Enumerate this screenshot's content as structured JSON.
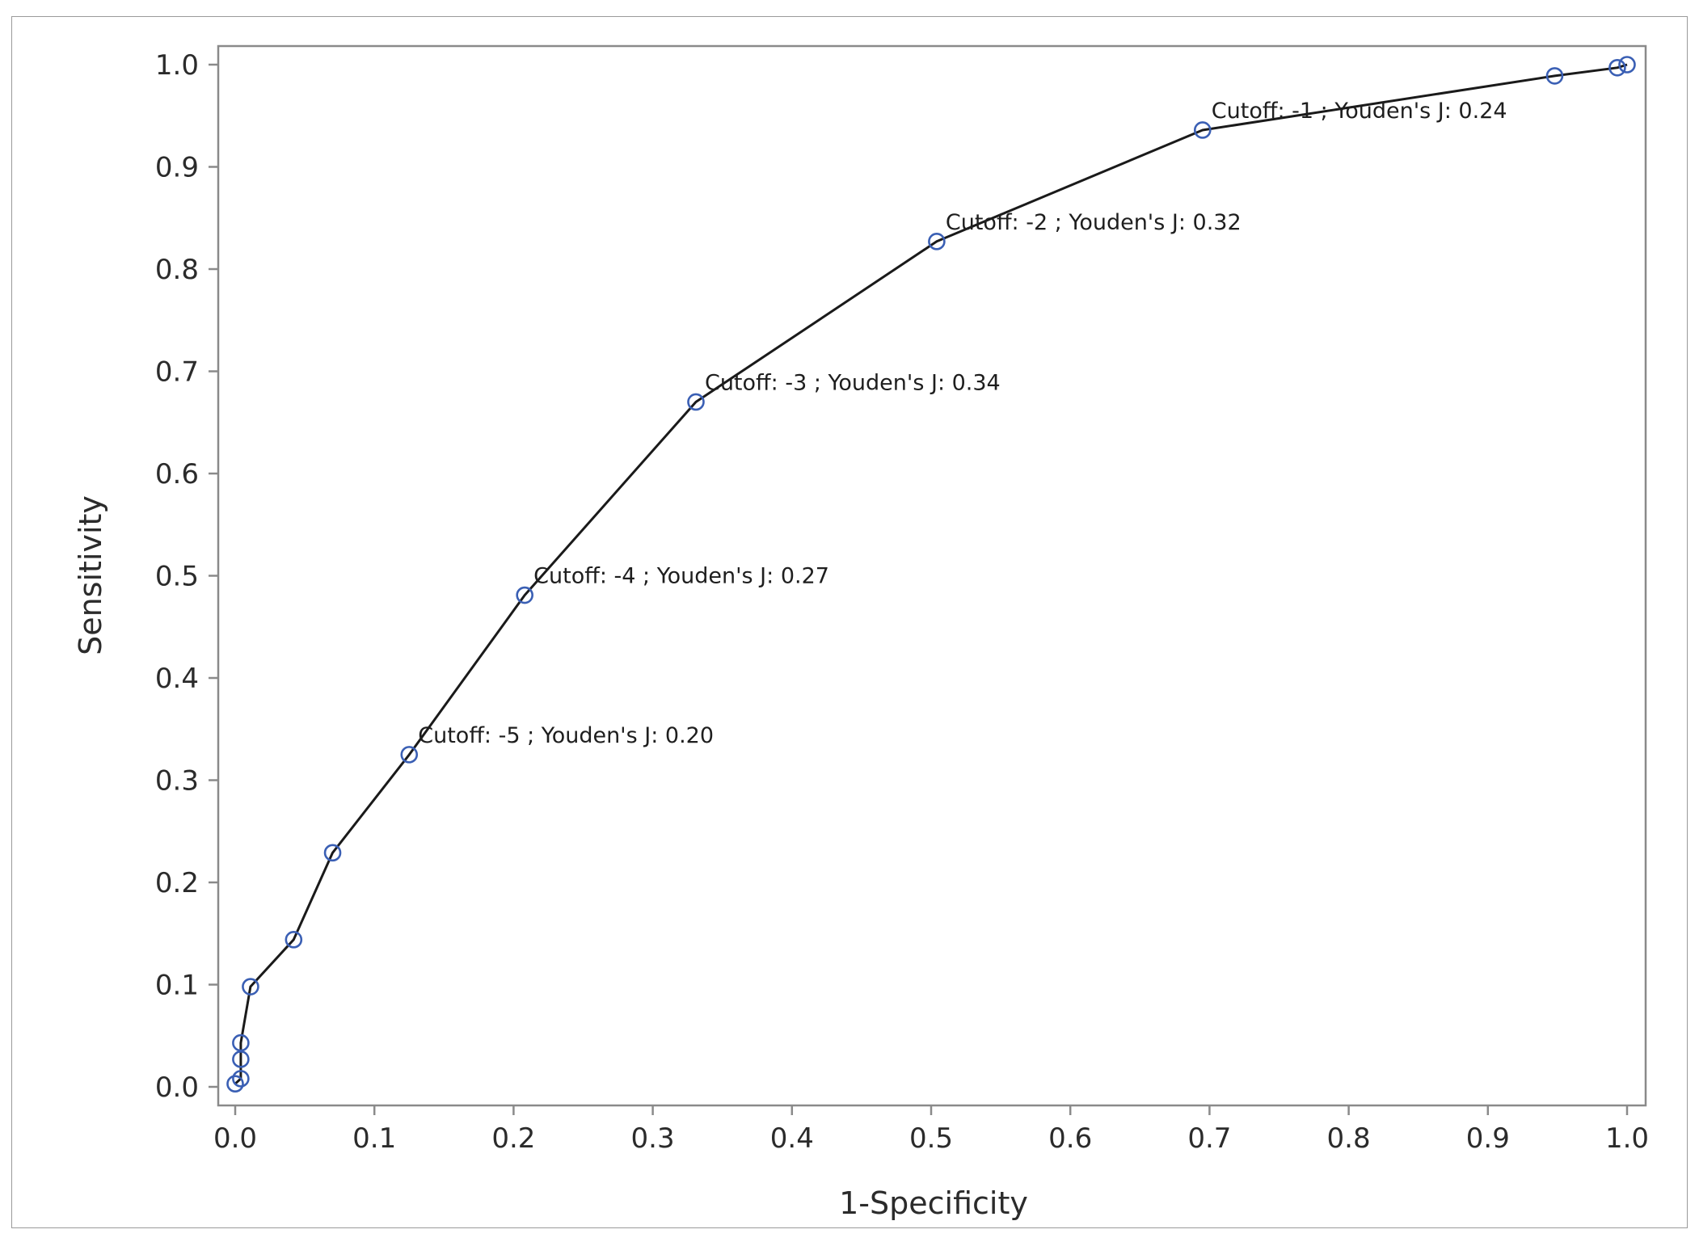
{
  "chart_data": {
    "type": "line",
    "title": "",
    "xlabel": "1-Specificity",
    "ylabel": "Sensitivity",
    "xlim": [
      0.0,
      1.0
    ],
    "ylim": [
      0.0,
      1.0
    ],
    "x_ticks": [
      "0.0",
      "0.1",
      "0.2",
      "0.3",
      "0.4",
      "0.5",
      "0.6",
      "0.7",
      "0.8",
      "0.9",
      "1.0"
    ],
    "y_ticks": [
      "0.0",
      "0.1",
      "0.2",
      "0.3",
      "0.4",
      "0.5",
      "0.6",
      "0.7",
      "0.8",
      "0.9",
      "1.0"
    ],
    "grid": false,
    "legend": "none",
    "series": [
      {
        "marker": "open-circle",
        "marker_color": "#3a5fb4",
        "line_color": "#1a1a1a",
        "points": [
          {
            "x": 0.0,
            "y": 0.003
          },
          {
            "x": 0.004,
            "y": 0.008
          },
          {
            "x": 0.004,
            "y": 0.027
          },
          {
            "x": 0.004,
            "y": 0.043
          },
          {
            "x": 0.011,
            "y": 0.098
          },
          {
            "x": 0.042,
            "y": 0.144
          },
          {
            "x": 0.07,
            "y": 0.229
          },
          {
            "x": 0.125,
            "y": 0.325
          },
          {
            "x": 0.208,
            "y": 0.481
          },
          {
            "x": 0.331,
            "y": 0.67
          },
          {
            "x": 0.504,
            "y": 0.827
          },
          {
            "x": 0.695,
            "y": 0.936
          },
          {
            "x": 0.948,
            "y": 0.989
          },
          {
            "x": 0.993,
            "y": 0.997
          },
          {
            "x": 1.0,
            "y": 1.0
          }
        ]
      }
    ],
    "annotations": [
      {
        "x": 0.125,
        "y": 0.325,
        "text": "Cutoff: -5 ; Youden's J: 0.20"
      },
      {
        "x": 0.208,
        "y": 0.481,
        "text": "Cutoff: -4 ; Youden's J: 0.27"
      },
      {
        "x": 0.331,
        "y": 0.67,
        "text": "Cutoff: -3 ; Youden's J: 0.34"
      },
      {
        "x": 0.504,
        "y": 0.827,
        "text": "Cutoff: -2 ; Youden's J: 0.32"
      },
      {
        "x": 0.695,
        "y": 0.936,
        "text": "Cutoff: -1 ; Youden's J: 0.24"
      }
    ]
  }
}
